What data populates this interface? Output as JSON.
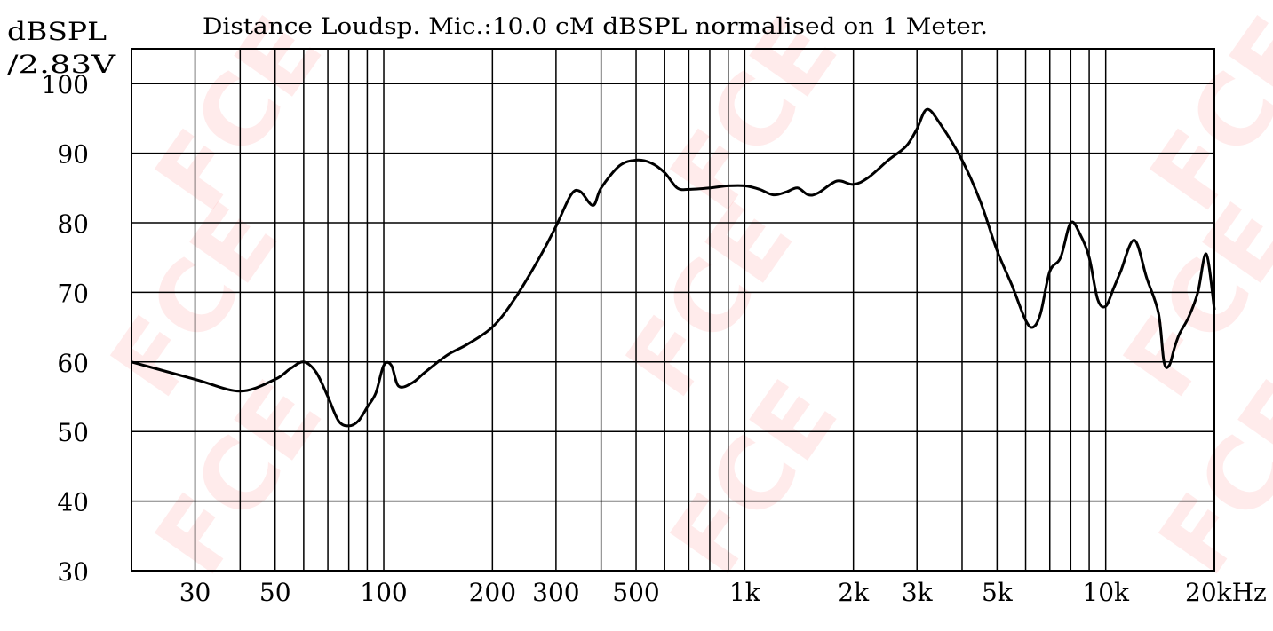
{
  "chart_data": {
    "type": "line",
    "title": "Distance Loudsp. Mic.:10.0 cM dBSPL normalised on 1 Meter.",
    "ylabel_line1": "dBSPL",
    "ylabel_line2": "/2.83V",
    "xscale": "log",
    "xlim": [
      20,
      20000
    ],
    "ylim": [
      30,
      105
    ],
    "yticks": [
      100,
      90,
      80,
      70,
      60,
      50,
      40,
      30
    ],
    "xtick_labels": [
      {
        "value": 30,
        "label": "30"
      },
      {
        "value": 50,
        "label": "50"
      },
      {
        "value": 100,
        "label": "100"
      },
      {
        "value": 200,
        "label": "200"
      },
      {
        "value": 300,
        "label": "300"
      },
      {
        "value": 500,
        "label": "500"
      },
      {
        "value": 1000,
        "label": "1k"
      },
      {
        "value": 2000,
        "label": "2k"
      },
      {
        "value": 3000,
        "label": "3k"
      },
      {
        "value": 5000,
        "label": "5k"
      },
      {
        "value": 10000,
        "label": "10k"
      },
      {
        "value": 20000,
        "label": "20kHz"
      }
    ],
    "grid": true,
    "watermark": "FCE",
    "line_color": "#000000",
    "series": [
      {
        "x": [
          20,
          30,
          40,
          50,
          55,
          60,
          65,
          70,
          75,
          80,
          85,
          90,
          95,
          100,
          105,
          110,
          120,
          130,
          150,
          170,
          200,
          230,
          270,
          300,
          330,
          350,
          380,
          400,
          450,
          500,
          550,
          600,
          650,
          700,
          800,
          900,
          1000,
          1100,
          1200,
          1300,
          1400,
          1500,
          1600,
          1800,
          2000,
          2200,
          2500,
          2800,
          3000,
          3200,
          3500,
          4000,
          4500,
          5000,
          5500,
          6000,
          6300,
          6600,
          7000,
          7500,
          8000,
          8500,
          9000,
          9500,
          10000,
          10500,
          11000,
          12000,
          13000,
          14000,
          14500,
          15000,
          15500,
          16000,
          17000,
          18000,
          19000,
          20000
        ],
        "y": [
          60,
          57.5,
          55.8,
          57.5,
          59,
          60,
          58.5,
          55,
          51.5,
          50.8,
          51.5,
          53.5,
          55.5,
          59.5,
          59.5,
          56.5,
          57,
          58.5,
          61,
          62.5,
          65,
          69,
          75,
          79.5,
          84,
          84.5,
          82.5,
          85,
          88.2,
          89,
          88.6,
          87.2,
          85,
          84.8,
          85,
          85.3,
          85.3,
          84.8,
          84,
          84.4,
          85,
          84,
          84.3,
          86,
          85.5,
          86.5,
          89,
          91,
          93.5,
          96.3,
          94,
          89,
          83,
          76,
          71,
          66,
          65,
          67,
          73,
          75,
          80,
          78.3,
          75,
          69,
          68,
          70.5,
          73,
          77.5,
          72,
          67,
          60,
          59.5,
          62,
          64,
          66.5,
          70,
          75.5,
          67.5
        ]
      }
    ]
  }
}
